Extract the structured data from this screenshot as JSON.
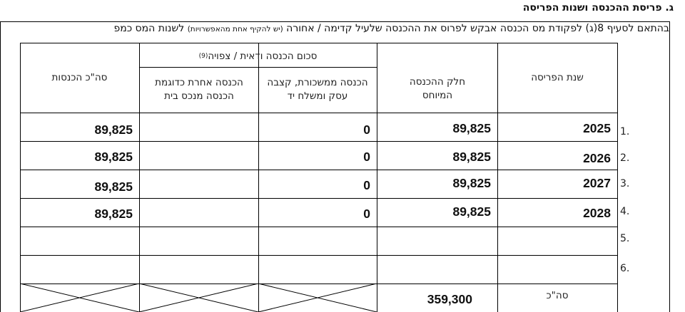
{
  "section": {
    "title": "ג. פריסת ההכנסה ושנות הפריסה",
    "intro_main": "בהתאם לסעיף 8(ג) לפקודת מס הכנסה אבקש לפרוס את ההכנסה שלעיל קדימה / אחורה ",
    "intro_note": "(יש להקיף אחת מהאפשרויות)",
    "intro_tail": " לשנות המס כמפ"
  },
  "table": {
    "headers": {
      "year": "שנת הפריסה",
      "attributed": "חלק ההכנסה המיוחס",
      "group": "סכום הכנסה ודאית / צפויה",
      "group_footnote": "(9)",
      "rental": "הכנסה ממשכורת, קצבה עסק ומשלח יד",
      "other": "הכנסה אחרת כדוגמת הכנסה מנכס בית",
      "total": "סה\"כ הכנסות"
    },
    "rows": [
      {
        "num": "1.",
        "year": "2025",
        "attributed": "89,825",
        "rental": "0",
        "other": "",
        "total": "89,825"
      },
      {
        "num": "2.",
        "year": "2026",
        "attributed": "89,825",
        "rental": "0",
        "other": "",
        "total": "89,825"
      },
      {
        "num": "3.",
        "year": "2027",
        "attributed": "89,825",
        "rental": "0",
        "other": "",
        "total": "89,825"
      },
      {
        "num": "4.",
        "year": "2028",
        "attributed": "89,825",
        "rental": "0",
        "other": "",
        "total": "89,825"
      },
      {
        "num": "5.",
        "year": "",
        "attributed": "",
        "rental": "",
        "other": "",
        "total": ""
      },
      {
        "num": "6.",
        "year": "",
        "attributed": "",
        "rental": "",
        "other": "",
        "total": ""
      }
    ],
    "sum_row": {
      "label": "סה\"כ",
      "attributed": "359,300"
    }
  }
}
